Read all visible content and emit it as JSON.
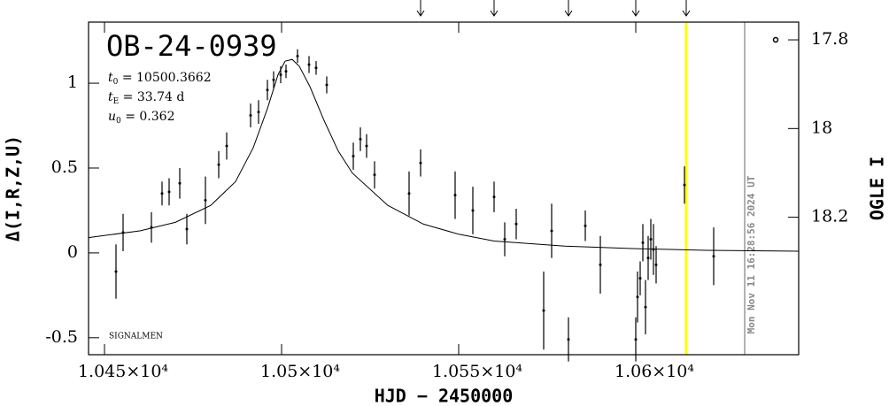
{
  "chart_data": {
    "type": "scatter",
    "title": "OB-24-0939",
    "parameters": [
      {
        "symbol": "t",
        "sub": "0",
        "text": " = 10500.3662"
      },
      {
        "symbol": "t",
        "sub": "E",
        "text": " = 33.74 d"
      },
      {
        "symbol": "u",
        "sub": "0",
        "text": " = 0.362"
      }
    ],
    "credit": "SIGNALMEN",
    "timestamp": "Mon Nov 11 16:28:56 2024 UT",
    "x_label": "HJD − 2450000",
    "y_label": "Δ(I,R,Z,U)",
    "y2_label": "OGLE I",
    "xlim": [
      10445.5,
      10646
    ],
    "ylim": [
      -0.6,
      1.36
    ],
    "y2lim": [
      18.51,
      17.76
    ],
    "xticks": [
      {
        "value": 10450,
        "label": "1.045×10⁴"
      },
      {
        "value": 10500,
        "label": "1.05×10⁴"
      },
      {
        "value": 10550,
        "label": "1.055×10⁴"
      },
      {
        "value": 10600,
        "label": "1.06×10⁴"
      }
    ],
    "yticks": [
      -0.5,
      0,
      0.5,
      1
    ],
    "y2ticks": [
      17.8,
      18,
      18.2
    ],
    "vlines": [
      {
        "x": 10614.25,
        "color": "#ffff00"
      },
      {
        "x": 10630.75,
        "color": "#999999"
      }
    ],
    "arrows": [
      10539.25,
      10560,
      10581,
      10600,
      10614.25
    ],
    "model": {
      "color": "#000000",
      "x": [
        10445.5,
        10460,
        10470,
        10480,
        10487,
        10492,
        10496,
        10499,
        10501,
        10503,
        10505,
        10508,
        10512,
        10516,
        10520,
        10530,
        10540,
        10550,
        10560,
        10580,
        10600,
        10620,
        10646
      ],
      "values": [
        0.09,
        0.13,
        0.18,
        0.28,
        0.42,
        0.62,
        0.85,
        1.05,
        1.13,
        1.14,
        1.1,
        0.98,
        0.78,
        0.6,
        0.47,
        0.28,
        0.17,
        0.11,
        0.07,
        0.04,
        0.025,
        0.015,
        0.01
      ]
    },
    "series": [
      {
        "color": "#000000",
        "marker": "dot",
        "x": [
          10453.25,
          10455.25,
          10463.25,
          10466.25,
          10468.25,
          10471.25,
          10473.25,
          10478.5,
          10482.25,
          10484.5,
          10491.25,
          10493.5,
          10496,
          10497.75,
          10499.75,
          10501.25,
          10504.5,
          10507.75,
          10509.75,
          10512.75,
          10520.25,
          10522.25,
          10524,
          10526.25,
          10536,
          10539.25,
          10549,
          10554,
          10560,
          10563,
          10566.25,
          10574,
          10576.25,
          10581,
          10585.75,
          10590,
          10600,
          10600.5,
          10601.25,
          10602,
          10602.75,
          10603.5,
          10604.25,
          10605,
          10605.75,
          10613.75,
          10622
        ],
        "values": [
          -0.11,
          0.12,
          0.15,
          0.35,
          0.36,
          0.41,
          0.14,
          0.31,
          0.52,
          0.63,
          0.81,
          0.83,
          0.96,
          1.02,
          1.05,
          1.07,
          1.16,
          1.11,
          1.09,
          0.99,
          0.57,
          0.67,
          0.63,
          0.46,
          0.35,
          0.53,
          0.34,
          0.25,
          0.33,
          0.08,
          0.17,
          -0.34,
          0.13,
          -0.51,
          0.16,
          -0.07,
          -0.51,
          -0.26,
          -0.15,
          0.06,
          -0.32,
          -0.03,
          0.08,
          0.02,
          -0.07,
          0.4,
          -0.02
        ],
        "errors": [
          0.16,
          0.11,
          0.09,
          0.07,
          0.08,
          0.09,
          0.09,
          0.14,
          0.08,
          0.08,
          0.07,
          0.07,
          0.06,
          0.05,
          0.05,
          0.04,
          0.04,
          0.05,
          0.04,
          0.05,
          0.08,
          0.07,
          0.07,
          0.08,
          0.13,
          0.08,
          0.14,
          0.14,
          0.09,
          0.1,
          0.09,
          0.23,
          0.16,
          0.13,
          0.09,
          0.17,
          0.13,
          0.15,
          0.1,
          0.11,
          0.16,
          0.13,
          0.12,
          0.15,
          0.11,
          0.11,
          0.17
        ]
      },
      {
        "color": "#000000",
        "marker": "circle",
        "axis": "y2",
        "x": [
          10639.5
        ],
        "values": [
          17.8
        ]
      }
    ]
  }
}
